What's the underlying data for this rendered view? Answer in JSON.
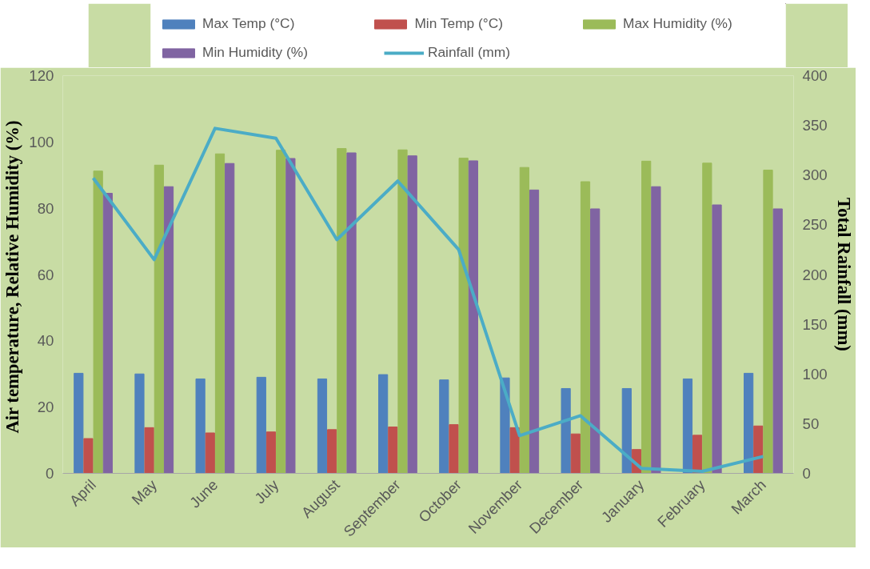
{
  "chart_data": {
    "type": "bar",
    "categories": [
      "April",
      "May",
      "June",
      "July",
      "August",
      "September",
      "October",
      "November",
      "December",
      "January",
      "February",
      "March"
    ],
    "ylabel": "Air temperature, Relative Humidity  (%)",
    "y2label": "Total Rainfall (mm)",
    "ylim": [
      0,
      120
    ],
    "yticks": [
      0,
      20,
      40,
      60,
      80,
      100,
      120
    ],
    "y2lim": [
      0,
      400
    ],
    "y2ticks": [
      0,
      50,
      100,
      150,
      200,
      250,
      300,
      350,
      400
    ],
    "grid": false,
    "legend": "top",
    "series": [
      {
        "name": "Max Temp (°C)",
        "color": "#4f81bd",
        "values": [
          30.2,
          30,
          28.5,
          29,
          28.5,
          29.8,
          28.2,
          28.8,
          25.6,
          25.6,
          28.5,
          30.2
        ]
      },
      {
        "name": "Min Temp (°C)",
        "color": "#c0504d",
        "values": [
          10.5,
          13.8,
          12.2,
          12.5,
          13.2,
          14,
          14.7,
          13.8,
          11.9,
          7.2,
          11.5,
          14.3
        ]
      },
      {
        "name": "Max Humidity (%)",
        "color": "#9bbb59",
        "values": [
          91.2,
          93,
          96.4,
          97.5,
          98,
          97.6,
          95.1,
          92.3,
          88,
          94.2,
          93.6,
          91.5
        ]
      },
      {
        "name": "Min Humidity (%)",
        "color": "#8064a2",
        "values": [
          84.5,
          86.5,
          93.5,
          95,
          96.7,
          95.8,
          94.3,
          85.5,
          79.8,
          86.5,
          81,
          79.8
        ]
      },
      {
        "name": "Rainfall (mm)",
        "type": "line",
        "axis": "y2",
        "color": "#4bacc6",
        "values": [
          297,
          215,
          347,
          337,
          235,
          294,
          225,
          38,
          58,
          5,
          2,
          17
        ]
      }
    ]
  }
}
